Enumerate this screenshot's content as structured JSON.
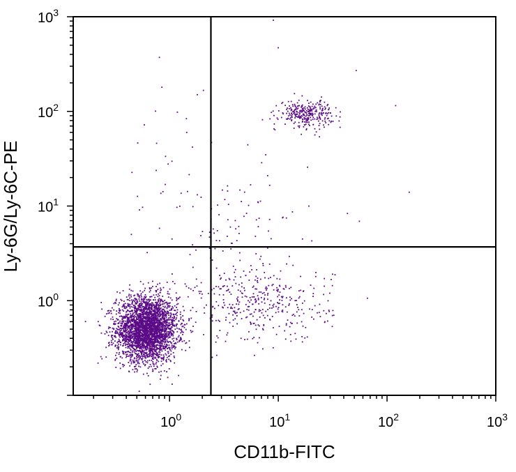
{
  "chart_data": {
    "type": "scatter",
    "title": "",
    "xlabel": "CD11b-FITC",
    "ylabel": "Ly-6G/Ly-6C-PE",
    "x_scale": "log",
    "y_scale": "log",
    "xlim": [
      0.13,
      1000
    ],
    "ylim": [
      0.1,
      1000
    ],
    "grid": false,
    "point_color": "#5b0a87",
    "line_color": "#000000",
    "x_ticks": [
      {
        "base": "10",
        "exp": "0",
        "value": 1
      },
      {
        "base": "10",
        "exp": "1",
        "value": 10
      },
      {
        "base": "10",
        "exp": "2",
        "value": 100
      },
      {
        "base": "10",
        "exp": "3",
        "value": 1000
      }
    ],
    "y_ticks": [
      {
        "base": "10",
        "exp": "0",
        "value": 1
      },
      {
        "base": "10",
        "exp": "1",
        "value": 10
      },
      {
        "base": "10",
        "exp": "2",
        "value": 100
      },
      {
        "base": "10",
        "exp": "3",
        "value": 1000
      }
    ],
    "quadrant_gate": {
      "x": 2.4,
      "y": 3.7
    },
    "populations": [
      {
        "center": [
          0.62,
          0.5
        ],
        "spread_log": [
          0.14,
          0.17
        ],
        "count": 3200
      },
      {
        "center": [
          18,
          95
        ],
        "spread_log": [
          0.12,
          0.07
        ],
        "count": 300
      },
      {
        "center": [
          7,
          0.9
        ],
        "spread_log": [
          0.32,
          0.2
        ],
        "count": 380
      },
      {
        "center": [
          4,
          5
        ],
        "spread_log": [
          0.35,
          0.4
        ],
        "count": 90
      },
      {
        "center": [
          1.2,
          12
        ],
        "spread_log": [
          0.3,
          0.55
        ],
        "count": 40
      }
    ],
    "extra_points": [
      [
        9,
        920
      ],
      [
        10,
        470
      ],
      [
        0.85,
        180
      ],
      [
        1.8,
        150
      ],
      [
        160,
        14
      ],
      [
        120,
        115
      ],
      [
        52,
        270
      ]
    ]
  }
}
